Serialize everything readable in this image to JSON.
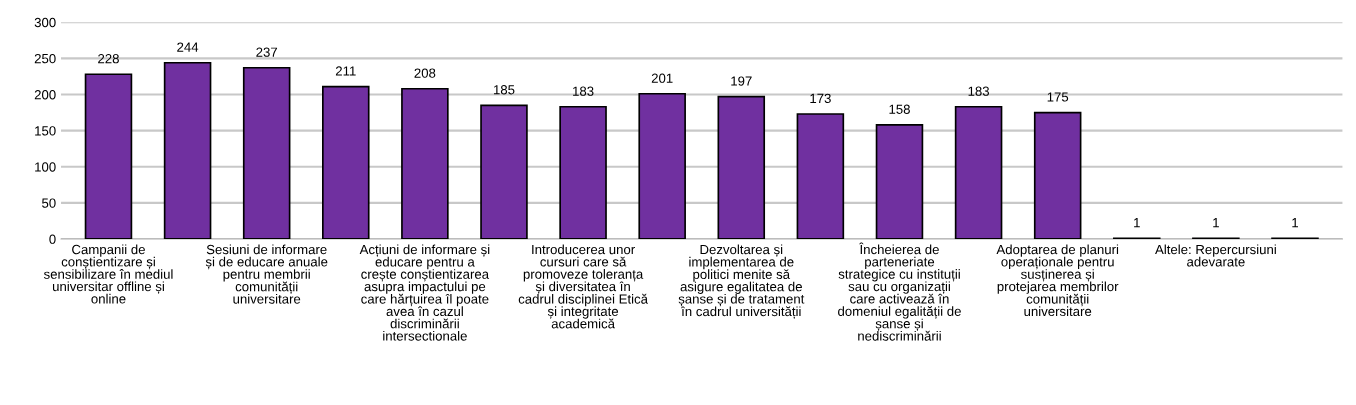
{
  "chart_data": {
    "type": "bar",
    "categories": [
      "Campanii de\nconștientizare și\nsensibilizare în mediul\nuniversitar offline și\nonline",
      null,
      "Sesiuni de informare\nși de educare anuale\npentru membrii\ncomunității\nuniversitare",
      null,
      "Acțiuni de informare și\neducare pentru a\ncrește conștientizarea\nasupra impactului pe\ncare hărțuirea îl poate\navea în cazul\ndiscriminării\nintersectionale",
      null,
      "Introducerea unor\ncursuri care să\npromoveze toleranța\nși diversitatea în\ncadrul disciplinei Etică\nși integritate\nacademică",
      null,
      "Dezvoltarea și\nimplementarea de\npolitici menite să\nasigure egalitatea de\nșanse și de tratament\nîn cadrul universității",
      null,
      "Încheierea de\nparteneriate\nstrategice cu instituții\nsau cu organizații\ncare activează în\ndomeniul egalității de\nșanse și\nnediscriminării",
      null,
      "Adoptarea de planuri\noperaționale pentru\nsusținerea și\nprotejarea membrilor\ncomunității\nuniversitare",
      null,
      "Altele: Repercursiuni\nadevarate",
      null
    ],
    "values": [
      228,
      244,
      237,
      211,
      208,
      185,
      183,
      201,
      197,
      173,
      158,
      183,
      175,
      1,
      1,
      1
    ],
    "color": "#7030a0",
    "ylim": [
      0,
      300
    ],
    "yticks": [
      0,
      50,
      100,
      150,
      200,
      250,
      300
    ],
    "grid": "y",
    "data_labels": true
  }
}
